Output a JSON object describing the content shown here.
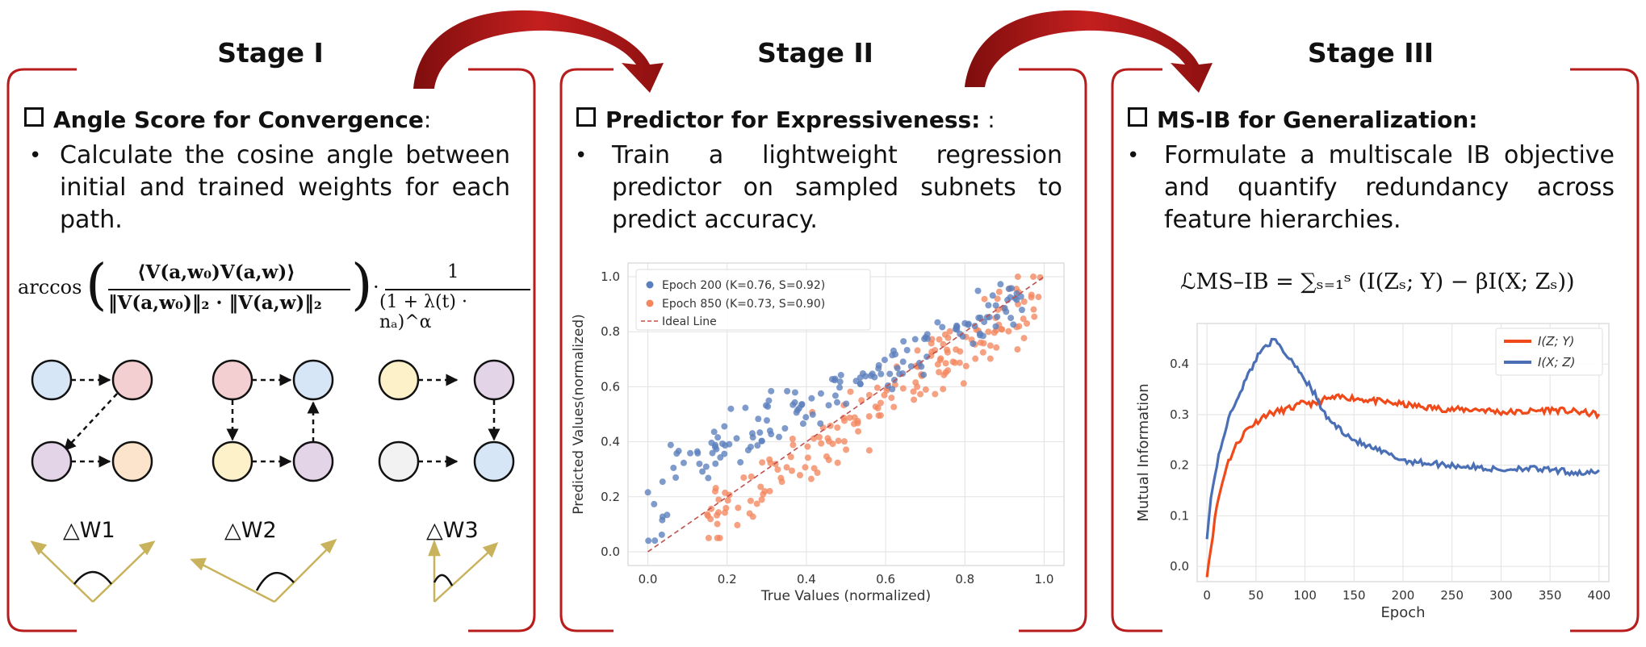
{
  "stages": [
    {
      "title": "Stage I",
      "heading": "Angle Score for Convergence",
      "heading_tail": ":",
      "bullet": "Calculate the cosine angle between initial and trained weights for each path.",
      "formula": {
        "func": "arccos",
        "numerator": "⟨V(a,w₀)V(a,w)⟩",
        "denominator": "‖V(a,w₀)‖₂ · ‖V(a,w)‖₂",
        "right_num": "1",
        "right_den": "(1 + λ(t) · nₐ)^α"
      },
      "deltas": [
        "△W1",
        "△W2",
        "△W3"
      ],
      "colors": {
        "blue": "#d6e6f7",
        "pink": "#f3cfd1",
        "purple": "#e3d4e8",
        "peach": "#fbe3cc",
        "yellow": "#fdf1c9",
        "gray": "#f2f2f2",
        "vector": "#c9b25c"
      }
    },
    {
      "title": "Stage II",
      "heading": "Predictor for Expressiveness:",
      "heading_tail": " :",
      "bullet": "Train a lightweight regression predictor on sampled subnets to predict accuracy."
    },
    {
      "title": "Stage III",
      "heading": "MS-IB for Generalization:",
      "heading_tail": "",
      "bullet": "Formulate a multiscale IB objective and quantify redundancy across feature hierarchies.",
      "formula": "ℒMS–IB = ∑ₛ₌₁ˢ (I(Zₛ; Y) − βI(X; Zₛ))"
    }
  ],
  "accent_color": "#b81c1c",
  "chart_data": [
    {
      "type": "scatter",
      "xlabel": "True Values (normalized)",
      "ylabel": "Predicted Values(normalized)",
      "xlim": [
        -0.05,
        1.05
      ],
      "ylim": [
        -0.05,
        1.05
      ],
      "xticks": [
        "0.0",
        "0.2",
        "0.4",
        "0.6",
        "0.8",
        "1.0"
      ],
      "yticks": [
        "0.0",
        "0.2",
        "0.4",
        "0.6",
        "0.8",
        "1.0"
      ],
      "grid": true,
      "legend_position": "top-left",
      "series": [
        {
          "name": "Epoch 200 (K=0.76, S=0.92)",
          "color": "#5b7fbd",
          "n": 160
        },
        {
          "name": "Epoch 850 (K=0.73, S=0.90)",
          "color": "#f4865f",
          "n": 180
        },
        {
          "name": "Ideal Line",
          "color": "#c0504d",
          "line": [
            [
              0,
              0
            ],
            [
              1,
              1
            ]
          ]
        }
      ]
    },
    {
      "type": "line",
      "xlabel": "Epoch",
      "ylabel": "Mutual Information",
      "xlim": [
        -10,
        410
      ],
      "ylim": [
        -0.03,
        0.48
      ],
      "xticks": [
        "0",
        "50",
        "100",
        "150",
        "200",
        "250",
        "300",
        "350",
        "400"
      ],
      "yticks": [
        "0.0",
        "0.1",
        "0.2",
        "0.3",
        "0.4"
      ],
      "grid": true,
      "legend_position": "top-right",
      "series": [
        {
          "name": "I(Z; Y)",
          "color": "#f04a1a",
          "x": [
            0,
            5,
            10,
            20,
            30,
            40,
            50,
            60,
            70,
            80,
            90,
            100,
            110,
            120,
            140,
            160,
            180,
            200,
            220,
            250,
            280,
            300,
            320,
            350,
            380,
            400
          ],
          "y": [
            -0.015,
            0.05,
            0.12,
            0.2,
            0.24,
            0.27,
            0.285,
            0.3,
            0.305,
            0.31,
            0.315,
            0.325,
            0.32,
            0.33,
            0.335,
            0.33,
            0.325,
            0.32,
            0.315,
            0.31,
            0.31,
            0.305,
            0.305,
            0.31,
            0.305,
            0.3
          ]
        },
        {
          "name": "I(X; Z)",
          "color": "#4a6fb5",
          "x": [
            0,
            5,
            10,
            20,
            30,
            40,
            50,
            60,
            70,
            80,
            90,
            100,
            110,
            120,
            130,
            140,
            150,
            160,
            180,
            200,
            220,
            250,
            280,
            300,
            320,
            350,
            380,
            400
          ],
          "y": [
            0.06,
            0.15,
            0.2,
            0.28,
            0.33,
            0.37,
            0.41,
            0.44,
            0.445,
            0.42,
            0.4,
            0.37,
            0.34,
            0.3,
            0.28,
            0.265,
            0.25,
            0.24,
            0.225,
            0.21,
            0.205,
            0.2,
            0.195,
            0.19,
            0.195,
            0.19,
            0.185,
            0.185
          ]
        }
      ]
    }
  ]
}
